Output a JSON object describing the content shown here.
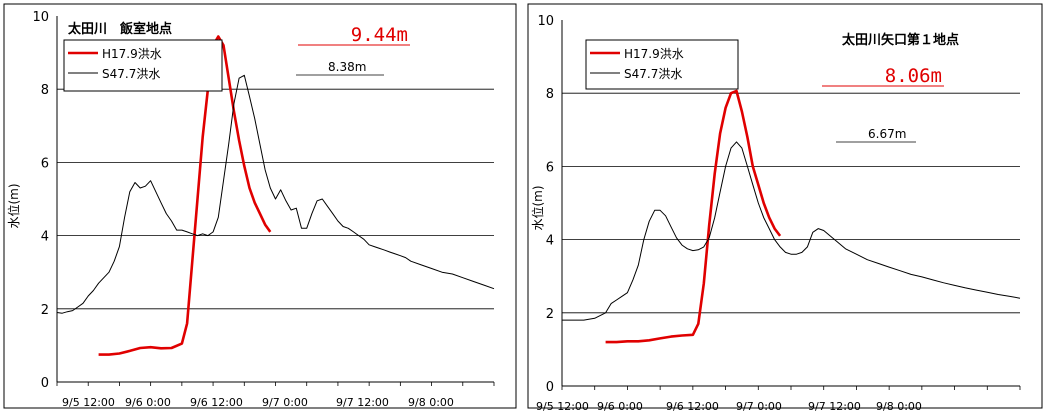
{
  "chart_data": [
    {
      "type": "line",
      "title": "太田川　飯室地点",
      "ylabel": "水位(m)",
      "xlabel": "",
      "ylim": [
        0,
        10
      ],
      "yticks": [
        "0",
        "2",
        "4",
        "6",
        "8",
        "10"
      ],
      "x_tick_labels": [
        "9/5 12:00",
        "9/6 0:00",
        "9/6 12:00",
        "9/7 0:00",
        "9/7 12:00",
        "9/8 0:00"
      ],
      "x_unit": "hours since 9/5 0:00",
      "x_range": [
        12,
        96
      ],
      "grid": "horizontal",
      "legend_position": "top-left",
      "series": [
        {
          "name": "H17.9洪水",
          "color": "#e00000",
          "x": [
            20,
            22,
            24,
            26,
            28,
            30,
            32,
            34,
            36,
            37,
            38,
            39,
            40,
            41,
            42,
            43,
            44,
            45,
            46,
            47,
            48,
            49,
            50,
            51,
            52,
            53,
            54,
            55,
            56,
            57
          ],
          "values": [
            0.75,
            0.75,
            0.78,
            0.85,
            0.93,
            0.95,
            0.92,
            0.93,
            1.05,
            1.6,
            3.3,
            5.0,
            6.7,
            8.0,
            9.2,
            9.44,
            9.2,
            8.3,
            7.4,
            6.6,
            5.9,
            5.3,
            4.9,
            4.6,
            4.3,
            4.1,
            null,
            null,
            null,
            null
          ]
        },
        {
          "name": "S47.7洪水",
          "color": "#000000",
          "x": [
            12,
            13,
            14,
            15,
            16,
            17,
            18,
            19,
            20,
            21,
            22,
            23,
            24,
            25,
            26,
            27,
            28,
            29,
            30,
            31,
            32,
            33,
            34,
            35,
            36,
            37,
            38,
            39,
            40,
            41,
            42,
            43,
            44,
            45,
            46,
            47,
            48,
            49,
            50,
            51,
            52,
            53,
            54,
            55,
            56,
            57,
            58,
            59,
            60,
            61,
            62,
            63,
            64,
            65,
            66,
            67,
            68,
            69,
            70,
            71,
            72,
            73,
            74,
            75,
            76,
            77,
            78,
            79,
            80,
            82,
            84,
            86,
            88,
            90,
            92,
            94,
            96
          ],
          "values": [
            1.9,
            1.88,
            1.92,
            1.95,
            2.05,
            2.15,
            2.35,
            2.5,
            2.7,
            2.85,
            3.0,
            3.3,
            3.7,
            4.5,
            5.2,
            5.45,
            5.3,
            5.35,
            5.5,
            5.2,
            4.9,
            4.6,
            4.4,
            4.15,
            4.15,
            4.1,
            4.05,
            4.0,
            4.05,
            4.0,
            4.1,
            4.5,
            5.5,
            6.5,
            7.6,
            8.3,
            8.38,
            7.8,
            7.2,
            6.5,
            5.8,
            5.3,
            5.0,
            5.25,
            4.95,
            4.7,
            4.75,
            4.2,
            4.2,
            4.6,
            4.95,
            5.0,
            4.8,
            4.6,
            4.4,
            4.25,
            4.2,
            4.1,
            4.0,
            3.9,
            3.75,
            3.7,
            3.65,
            3.6,
            3.55,
            3.5,
            3.45,
            3.4,
            3.3,
            3.2,
            3.1,
            3.0,
            2.95,
            2.85,
            2.75,
            2.65,
            2.55
          ]
        }
      ],
      "annotations": [
        {
          "text": "9.44m",
          "x": 43,
          "y": 9.44,
          "color": "#e00000"
        },
        {
          "text": "8.38m",
          "x": 48,
          "y": 8.38,
          "color": "#000000"
        }
      ]
    },
    {
      "type": "line",
      "title": "太田川矢口第１地点",
      "ylabel": "水位(m)",
      "xlabel": "",
      "ylim": [
        0,
        10
      ],
      "yticks": [
        "0",
        "2",
        "4",
        "6",
        "8",
        "10"
      ],
      "x_tick_labels": [
        "9/5 12:00",
        "9/6 0:00",
        "9/6 12:00",
        "9/7 0:00",
        "9/7 12:00",
        "9/8 0:00"
      ],
      "x_unit": "hours since 9/5 0:00",
      "x_range": [
        12,
        96
      ],
      "grid": "horizontal",
      "legend_position": "top-left",
      "series": [
        {
          "name": "H17.9洪水",
          "color": "#e00000",
          "x": [
            20,
            22,
            24,
            26,
            28,
            30,
            32,
            34,
            36,
            37,
            38,
            39,
            40,
            41,
            42,
            43,
            44,
            45,
            46,
            47,
            48,
            49,
            50,
            51,
            52,
            53,
            54,
            55,
            56,
            57
          ],
          "values": [
            1.2,
            1.2,
            1.22,
            1.22,
            1.25,
            1.3,
            1.35,
            1.38,
            1.4,
            1.7,
            2.8,
            4.4,
            5.8,
            6.9,
            7.6,
            8.0,
            8.06,
            7.5,
            6.8,
            6.0,
            5.5,
            5.0,
            4.6,
            4.3,
            4.1,
            null,
            null,
            null,
            null,
            null
          ]
        },
        {
          "name": "S47.7洪水",
          "color": "#000000",
          "x": [
            12,
            14,
            16,
            18,
            20,
            21,
            22,
            23,
            24,
            25,
            26,
            27,
            28,
            29,
            30,
            31,
            32,
            33,
            34,
            35,
            36,
            37,
            38,
            39,
            40,
            41,
            42,
            43,
            44,
            45,
            46,
            47,
            48,
            49,
            50,
            51,
            52,
            53,
            54,
            55,
            56,
            57,
            58,
            59,
            60,
            62,
            64,
            66,
            68,
            70,
            72,
            74,
            76,
            78,
            80,
            82,
            84,
            86,
            88,
            90,
            92,
            94,
            96
          ],
          "values": [
            1.8,
            1.8,
            1.8,
            1.85,
            2.0,
            2.25,
            2.35,
            2.45,
            2.55,
            2.9,
            3.3,
            4.0,
            4.5,
            4.8,
            4.8,
            4.65,
            4.35,
            4.05,
            3.85,
            3.75,
            3.7,
            3.72,
            3.8,
            4.05,
            4.6,
            5.3,
            6.0,
            6.5,
            6.67,
            6.5,
            6.0,
            5.5,
            5.0,
            4.6,
            4.3,
            4.0,
            3.8,
            3.65,
            3.6,
            3.6,
            3.65,
            3.8,
            4.2,
            4.3,
            4.25,
            4.0,
            3.75,
            3.6,
            3.45,
            3.35,
            3.25,
            3.15,
            3.05,
            2.98,
            2.9,
            2.82,
            2.75,
            2.68,
            2.62,
            2.56,
            2.5,
            2.45,
            2.4
          ]
        }
      ],
      "annotations": [
        {
          "text": "8.06m",
          "x": 44,
          "y": 8.06,
          "color": "#e00000"
        },
        {
          "text": "6.67m",
          "x": 44,
          "y": 6.67,
          "color": "#000000"
        }
      ]
    }
  ]
}
